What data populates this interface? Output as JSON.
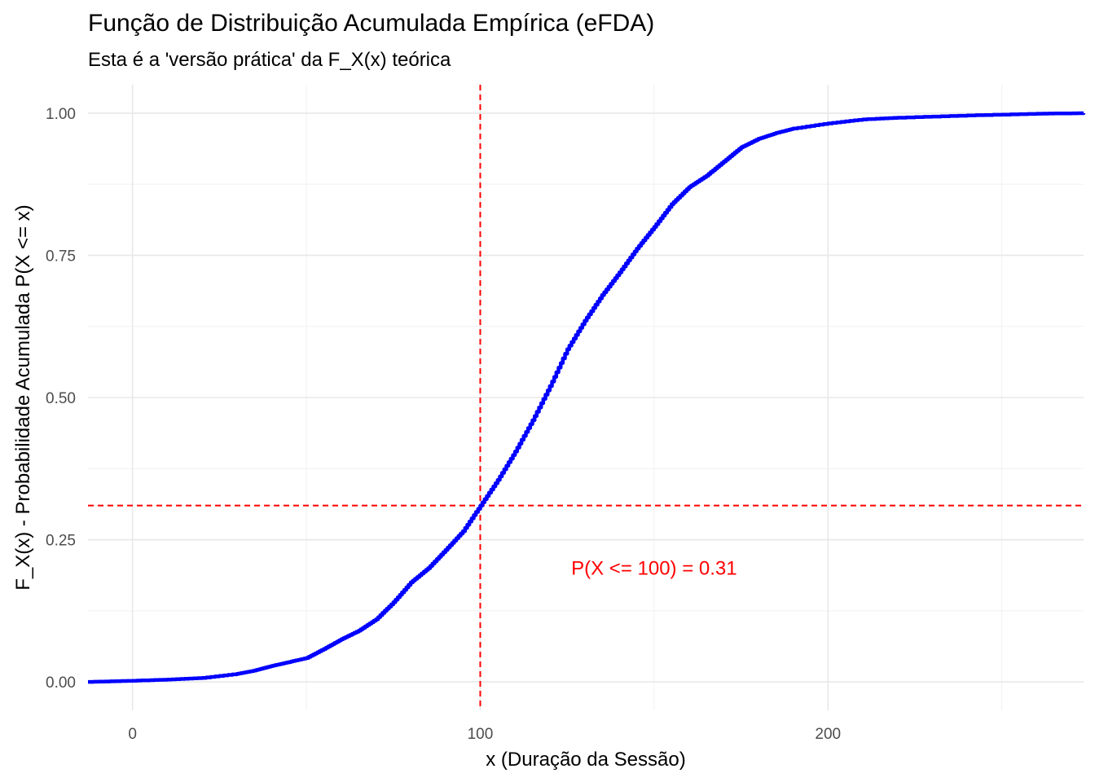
{
  "chart_data": {
    "type": "line",
    "title": "Função de Distribuição Acumulada Empírica (eFDA)",
    "subtitle": "Esta é a 'versão prática' da F_X(x) teórica",
    "xlabel": "x (Duração da Sessão)",
    "ylabel": "F_X(x) - Probabilidade Acumulada P(X <= x)",
    "xlim": [
      -12.8,
      273.5
    ],
    "ylim": [
      -0.05,
      1.05
    ],
    "x_ticks": [
      0,
      100,
      200
    ],
    "x_tick_labels": [
      "0",
      "100",
      "200"
    ],
    "y_ticks": [
      0,
      0.25,
      0.5,
      0.75,
      1
    ],
    "y_tick_labels": [
      "0.00",
      "0.25",
      "0.50",
      "0.75",
      "1.00"
    ],
    "grid": true,
    "series": [
      {
        "color": "#0000ff",
        "x": [
          -12.8,
          0,
          10,
          20,
          30,
          35,
          40,
          45,
          50,
          55,
          60,
          65,
          70,
          75,
          80,
          85,
          90,
          95,
          100,
          105,
          110,
          115,
          120,
          125,
          130,
          135,
          140,
          145,
          150,
          155,
          160,
          165,
          170,
          175,
          180,
          185,
          190,
          200,
          210,
          220,
          240,
          260,
          273.5
        ],
        "y": [
          0.0,
          0.002,
          0.004,
          0.007,
          0.014,
          0.02,
          0.028,
          0.035,
          0.042,
          0.058,
          0.075,
          0.09,
          0.11,
          0.14,
          0.175,
          0.2,
          0.232,
          0.265,
          0.31,
          0.355,
          0.405,
          0.46,
          0.52,
          0.585,
          0.635,
          0.68,
          0.72,
          0.762,
          0.8,
          0.84,
          0.87,
          0.89,
          0.915,
          0.94,
          0.955,
          0.965,
          0.973,
          0.982,
          0.989,
          0.992,
          0.996,
          0.999,
          1.0
        ]
      }
    ],
    "reference_lines": [
      {
        "orientation": "vertical",
        "value": 100,
        "color": "#ff0000",
        "style": "dashed"
      },
      {
        "orientation": "horizontal",
        "value": 0.31,
        "color": "#ff0000",
        "style": "dashed"
      }
    ],
    "annotations": [
      {
        "text": "P(X <= 100) = 0.31",
        "x": 150,
        "y": 0.2,
        "color": "#ff0000"
      }
    ]
  }
}
